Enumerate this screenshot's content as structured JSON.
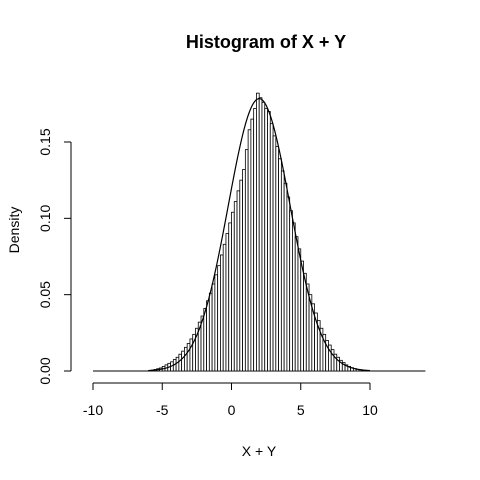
{
  "chart_data": {
    "type": "histogram",
    "title": "Histogram of X + Y",
    "xlabel": "X + Y",
    "ylabel": "Density",
    "xlim": [
      -10,
      14
    ],
    "ylim": [
      0,
      0.18
    ],
    "x_ticks": [
      -10,
      -5,
      0,
      5,
      10
    ],
    "x_tick_labels": [
      "-10",
      "-5",
      "0",
      "5",
      "10"
    ],
    "y_ticks": [
      0.0,
      0.05,
      0.1,
      0.15
    ],
    "y_tick_labels": [
      "0.00",
      "0.05",
      "0.10",
      "0.15"
    ],
    "bin_width": 0.2,
    "density_curve": {
      "mean": 2.0,
      "sd": 2.236,
      "color": "#000000"
    },
    "bins": [
      {
        "start": -6.0,
        "density": 0.0003
      },
      {
        "start": -5.8,
        "density": 0.0006
      },
      {
        "start": -5.6,
        "density": 0.001
      },
      {
        "start": -5.4,
        "density": 0.0015
      },
      {
        "start": -5.2,
        "density": 0.002
      },
      {
        "start": -5.0,
        "density": 0.003
      },
      {
        "start": -4.8,
        "density": 0.004
      },
      {
        "start": -4.6,
        "density": 0.005
      },
      {
        "start": -4.4,
        "density": 0.006
      },
      {
        "start": -4.2,
        "density": 0.0075
      },
      {
        "start": -4.0,
        "density": 0.009
      },
      {
        "start": -3.8,
        "density": 0.011
      },
      {
        "start": -3.6,
        "density": 0.013
      },
      {
        "start": -3.4,
        "density": 0.0155
      },
      {
        "start": -3.2,
        "density": 0.018
      },
      {
        "start": -3.0,
        "density": 0.021
      },
      {
        "start": -2.8,
        "density": 0.024
      },
      {
        "start": -2.6,
        "density": 0.028
      },
      {
        "start": -2.4,
        "density": 0.032
      },
      {
        "start": -2.2,
        "density": 0.036
      },
      {
        "start": -2.0,
        "density": 0.041
      },
      {
        "start": -1.8,
        "density": 0.046
      },
      {
        "start": -1.6,
        "density": 0.051
      },
      {
        "start": -1.4,
        "density": 0.057
      },
      {
        "start": -1.2,
        "density": 0.063
      },
      {
        "start": -1.0,
        "density": 0.069
      },
      {
        "start": -0.8,
        "density": 0.076
      },
      {
        "start": -0.6,
        "density": 0.083
      },
      {
        "start": -0.4,
        "density": 0.09
      },
      {
        "start": -0.2,
        "density": 0.097
      },
      {
        "start": 0.0,
        "density": 0.104
      },
      {
        "start": 0.2,
        "density": 0.111
      },
      {
        "start": 0.4,
        "density": 0.118
      },
      {
        "start": 0.6,
        "density": 0.125
      },
      {
        "start": 0.8,
        "density": 0.132
      },
      {
        "start": 1.0,
        "density": 0.145
      },
      {
        "start": 1.2,
        "density": 0.158
      },
      {
        "start": 1.4,
        "density": 0.165
      },
      {
        "start": 1.6,
        "density": 0.172
      },
      {
        "start": 1.8,
        "density": 0.182
      },
      {
        "start": 2.0,
        "density": 0.179
      },
      {
        "start": 2.2,
        "density": 0.176
      },
      {
        "start": 2.4,
        "density": 0.172
      },
      {
        "start": 2.6,
        "density": 0.17
      },
      {
        "start": 2.8,
        "density": 0.162
      },
      {
        "start": 3.0,
        "density": 0.154
      },
      {
        "start": 3.2,
        "density": 0.147
      },
      {
        "start": 3.4,
        "density": 0.139
      },
      {
        "start": 3.6,
        "density": 0.131
      },
      {
        "start": 3.8,
        "density": 0.123
      },
      {
        "start": 4.0,
        "density": 0.114
      },
      {
        "start": 4.2,
        "density": 0.105
      },
      {
        "start": 4.4,
        "density": 0.097
      },
      {
        "start": 4.6,
        "density": 0.088
      },
      {
        "start": 4.8,
        "density": 0.08
      },
      {
        "start": 5.0,
        "density": 0.072
      },
      {
        "start": 5.2,
        "density": 0.064
      },
      {
        "start": 5.4,
        "density": 0.057
      },
      {
        "start": 5.6,
        "density": 0.05
      },
      {
        "start": 5.8,
        "density": 0.044
      },
      {
        "start": 6.0,
        "density": 0.038
      },
      {
        "start": 6.2,
        "density": 0.033
      },
      {
        "start": 6.4,
        "density": 0.028
      },
      {
        "start": 6.6,
        "density": 0.024
      },
      {
        "start": 6.8,
        "density": 0.02
      },
      {
        "start": 7.0,
        "density": 0.017
      },
      {
        "start": 7.2,
        "density": 0.014
      },
      {
        "start": 7.4,
        "density": 0.011
      },
      {
        "start": 7.6,
        "density": 0.009
      },
      {
        "start": 7.8,
        "density": 0.007
      },
      {
        "start": 8.0,
        "density": 0.0055
      },
      {
        "start": 8.2,
        "density": 0.004
      },
      {
        "start": 8.4,
        "density": 0.003
      },
      {
        "start": 8.6,
        "density": 0.0022
      },
      {
        "start": 8.8,
        "density": 0.0016
      },
      {
        "start": 9.0,
        "density": 0.0011
      },
      {
        "start": 9.2,
        "density": 0.0008
      },
      {
        "start": 9.4,
        "density": 0.0005
      },
      {
        "start": 9.6,
        "density": 0.0003
      }
    ]
  }
}
